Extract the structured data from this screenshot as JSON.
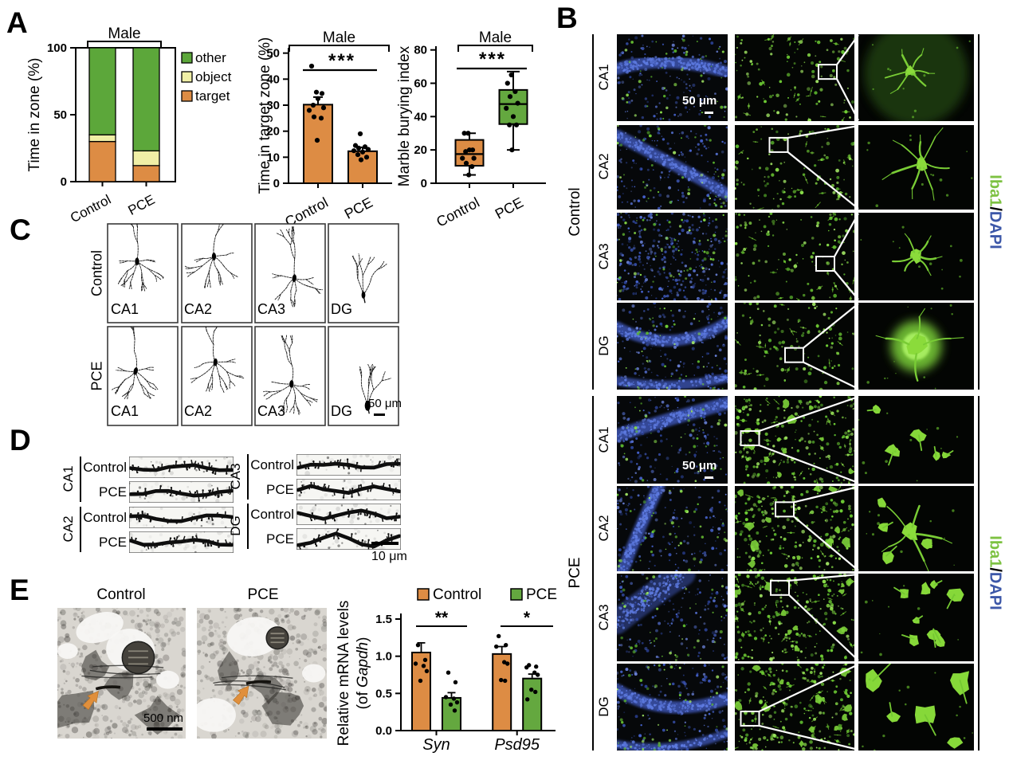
{
  "colors": {
    "orange": "#DD8C44",
    "stackGreen": "#5CA73A",
    "paleYellow": "#F0EFA6",
    "boxGreen": "#64A83F",
    "iba1Green": "#7DC242",
    "dapiBlue": "#3C57A8",
    "arrowOrange": "#E08F3C"
  },
  "panels": {
    "A": {
      "label": "A"
    },
    "B": {
      "label": "B",
      "blocks": [
        {
          "group": "Control",
          "rows": [
            "CA1",
            "CA2",
            "CA3",
            "DG"
          ]
        },
        {
          "group": "PCE",
          "rows": [
            "CA1",
            "CA2",
            "CA3",
            "DG"
          ]
        }
      ],
      "stain": {
        "green": "Iba1",
        "sep": "/",
        "blue": "DAPI"
      },
      "scale": "50 μm"
    },
    "C": {
      "label": "C",
      "groups": [
        "Control",
        "PCE"
      ],
      "regions": [
        "CA1",
        "CA2",
        "CA3",
        "DG"
      ],
      "scale": "50 μm"
    },
    "D": {
      "label": "D",
      "regions": [
        "CA1",
        "CA2",
        "CA3",
        "DG"
      ],
      "conditions": [
        "Control",
        "PCE"
      ],
      "scale": "10 μm"
    },
    "E": {
      "label": "E",
      "images": [
        "Control",
        "PCE"
      ],
      "scale": "500 nm"
    }
  },
  "chart_data": [
    {
      "id": "time-in-zone",
      "type": "bar",
      "stacked": true,
      "title": "Male",
      "ylabel": "Time in zone (%)",
      "ylim": [
        0,
        100
      ],
      "yticks": [
        0,
        50,
        100
      ],
      "categories": [
        "Control",
        "PCE"
      ],
      "series": [
        {
          "name": "target",
          "color_key": "orange",
          "values": [
            30,
            12
          ]
        },
        {
          "name": "object",
          "color_key": "paleYellow",
          "values": [
            5,
            11
          ]
        },
        {
          "name": "other",
          "color_key": "stackGreen",
          "values": [
            65,
            77
          ]
        }
      ],
      "legend": [
        {
          "label": "other",
          "color_key": "stackGreen"
        },
        {
          "label": "object",
          "color_key": "paleYellow"
        },
        {
          "label": "target",
          "color_key": "orange"
        }
      ]
    },
    {
      "id": "time-in-target-zone",
      "type": "bar",
      "title": "Male",
      "ylabel": "Time in target zone (%)",
      "ylim": [
        0,
        50
      ],
      "yticks": [
        0,
        10,
        20,
        30,
        40,
        50
      ],
      "categories": [
        "Control",
        "PCE"
      ],
      "bar_color_key": "orange",
      "means": [
        30.2,
        12.3
      ],
      "sems": [
        2.9,
        1.5
      ],
      "points": [
        [
          45,
          35,
          34.5,
          32.5,
          30,
          29,
          28,
          25.5,
          25,
          16.5
        ],
        [
          19,
          14.5,
          14,
          13.5,
          13,
          12.5,
          12,
          11,
          10,
          9
        ]
      ],
      "significance": "***"
    },
    {
      "id": "marble-burying",
      "type": "box",
      "title": "Male",
      "ylabel": "Marble burying index",
      "ylim": [
        0,
        80
      ],
      "yticks": [
        0,
        20,
        40,
        60,
        80
      ],
      "categories": [
        "Control",
        "PCE"
      ],
      "box_color_keys": [
        "orange",
        "boxGreen"
      ],
      "boxes": [
        {
          "min": 5,
          "q1": 10.5,
          "median": 17.5,
          "q3": 26,
          "max": 30
        },
        {
          "min": 20,
          "q1": 35.5,
          "median": 47.5,
          "q3": 56,
          "max": 67
        }
      ],
      "points": [
        [
          30,
          30,
          20,
          20,
          19,
          15,
          15,
          12,
          10,
          5
        ],
        [
          65,
          60,
          55,
          52,
          48,
          45,
          40,
          35,
          35,
          20
        ]
      ],
      "significance": "***"
    },
    {
      "id": "relative-mrna",
      "type": "bar",
      "grouped": true,
      "ylabel_line1": "Relative mRNA levels",
      "ylabel_line2": {
        "prefix": "(of ",
        "gene": "Gapdh",
        "suffix": ")"
      },
      "ylim": [
        0,
        1.5
      ],
      "yticks": [
        0,
        0.5,
        1,
        1.5
      ],
      "categories": [
        "Syn",
        "Psd95"
      ],
      "series": [
        {
          "name": "Control",
          "color_key": "orange",
          "values": [
            1.05,
            1.03
          ],
          "sems": [
            0.13,
            0.1
          ],
          "points": [
            [
              1.15,
              0.95,
              0.9,
              0.87,
              0.8,
              0.67
            ],
            [
              1.27,
              1.15,
              1.13,
              0.92,
              0.9,
              0.68,
              0.67
            ]
          ]
        },
        {
          "name": "PCE",
          "color_key": "boxGreen",
          "values": [
            0.44,
            0.7
          ],
          "sems": [
            0.07,
            0.06
          ],
          "points": [
            [
              0.78,
              0.65,
              0.45,
              0.43,
              0.38,
              0.35,
              0.27
            ],
            [
              0.88,
              0.86,
              0.85,
              0.78,
              0.75,
              0.55,
              0.52,
              0.42
            ]
          ]
        }
      ],
      "significance": [
        "**",
        "*"
      ]
    }
  ]
}
